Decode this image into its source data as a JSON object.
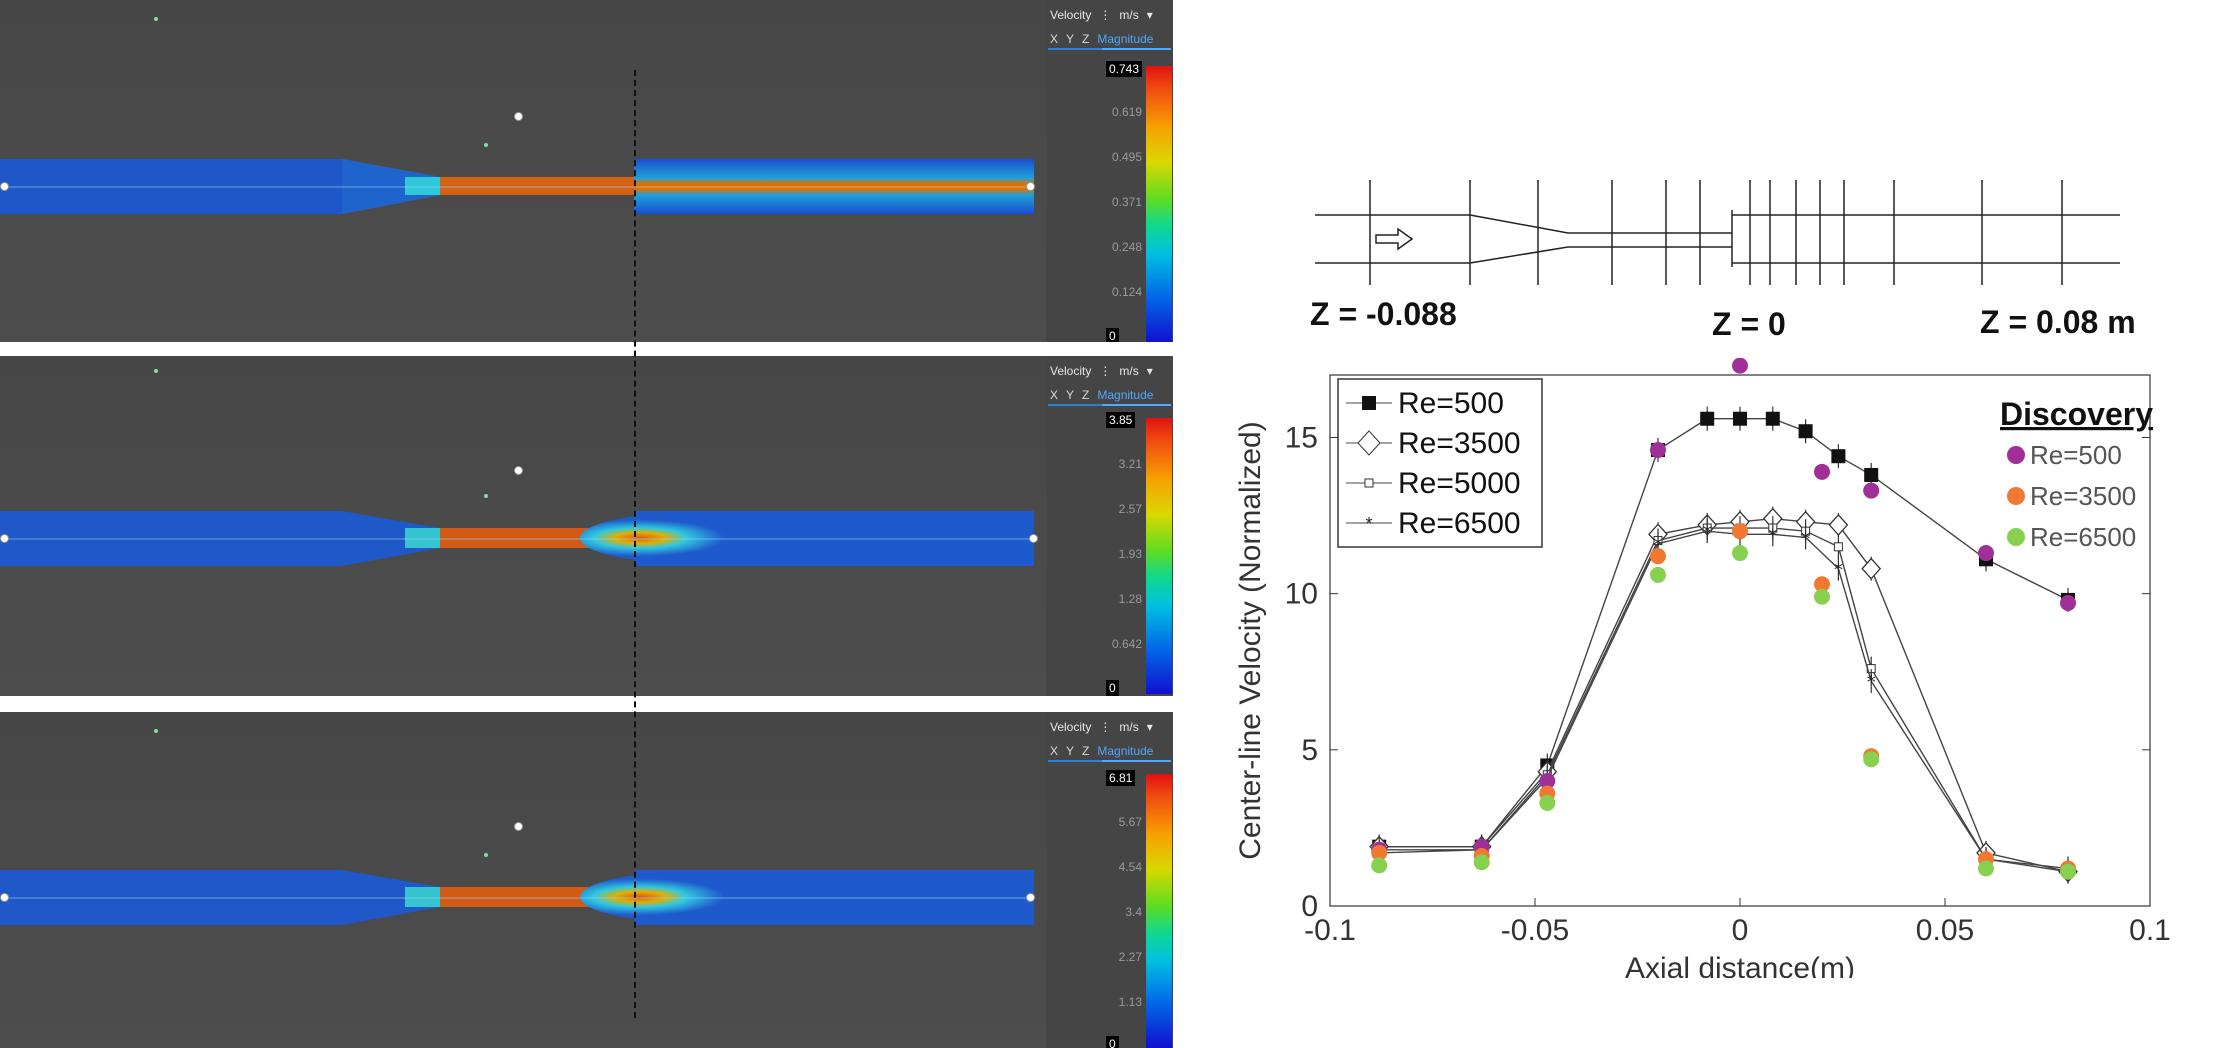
{
  "panels": [
    {
      "label": "Velocity",
      "unit": "m/s",
      "axes": [
        "X",
        "Y",
        "Z"
      ],
      "active_axis": "Magnitude",
      "ticks": [
        "0.743",
        "0.619",
        "0.495",
        "0.371",
        "0.248",
        "0.124",
        "0"
      ]
    },
    {
      "label": "Velocity",
      "unit": "m/s",
      "axes": [
        "X",
        "Y",
        "Z"
      ],
      "active_axis": "Magnitude",
      "ticks": [
        "3.85",
        "3.21",
        "2.57",
        "1.93",
        "1.28",
        "0.642",
        "0"
      ]
    },
    {
      "label": "Velocity",
      "unit": "m/s",
      "axes": [
        "X",
        "Y",
        "Z"
      ],
      "active_axis": "Magnitude",
      "ticks": [
        "6.81",
        "5.67",
        "4.54",
        "3.4",
        "2.27",
        "1.13",
        "0"
      ]
    }
  ],
  "colors": {
    "scale_max": "#e01010",
    "scale_min": "#1010d0",
    "selected_tab": "#4fa8ff"
  },
  "diagram": {
    "z_left": "Z = -0.088",
    "z_mid": "Z = 0",
    "z_right": "Z = 0.08 m"
  },
  "chart_data": {
    "type": "scatter",
    "xlabel": "Axial distance(m)",
    "ylabel": "Center-line Velocity (Normalized)",
    "xlim": [
      -0.1,
      0.1
    ],
    "ylim": [
      0,
      17
    ],
    "xticks": [
      "-0.1",
      "-0.05",
      "0",
      "0.05",
      "0.1"
    ],
    "yticks": [
      "0",
      "5",
      "10",
      "15"
    ],
    "discovery_title": "Discovery",
    "series": [
      {
        "name": "Re=500",
        "marker": "square",
        "x": [
          -0.088,
          -0.063,
          -0.047,
          -0.02,
          -0.008,
          0.0,
          0.008,
          0.016,
          0.024,
          0.032,
          0.06,
          0.08
        ],
        "y": [
          1.9,
          1.9,
          4.5,
          14.6,
          15.6,
          15.6,
          15.6,
          15.2,
          14.4,
          13.8,
          11.1,
          9.8
        ]
      },
      {
        "name": "Re=3500",
        "marker": "diamond",
        "x": [
          -0.088,
          -0.063,
          -0.047,
          -0.02,
          -0.008,
          0.0,
          0.008,
          0.016,
          0.024,
          0.032,
          0.06,
          0.08
        ],
        "y": [
          1.9,
          1.9,
          4.3,
          11.9,
          12.2,
          12.3,
          12.4,
          12.3,
          12.2,
          10.8,
          1.7,
          1.1
        ]
      },
      {
        "name": "Re=5000",
        "marker": "small-square",
        "x": [
          -0.088,
          -0.063,
          -0.047,
          -0.02,
          -0.008,
          0.0,
          0.008,
          0.016,
          0.024,
          0.032,
          0.06,
          0.08
        ],
        "y": [
          1.8,
          1.8,
          4.2,
          11.7,
          12.1,
          12.1,
          12.1,
          12.0,
          11.5,
          7.6,
          1.5,
          1.2
        ]
      },
      {
        "name": "Re=6500",
        "marker": "star",
        "x": [
          -0.088,
          -0.063,
          -0.047,
          -0.02,
          -0.008,
          0.0,
          0.008,
          0.016,
          0.024,
          0.032,
          0.06,
          0.08
        ],
        "y": [
          1.7,
          1.8,
          4.1,
          11.6,
          12.0,
          11.9,
          11.9,
          11.8,
          10.8,
          7.2,
          1.5,
          1.1
        ]
      }
    ],
    "discovery": [
      {
        "name": "Re=500",
        "color": "#a03098",
        "x": [
          -0.088,
          -0.063,
          -0.047,
          -0.02,
          0.0,
          0.02,
          0.032,
          0.06,
          0.08
        ],
        "y": [
          1.8,
          1.9,
          4.0,
          14.6,
          17.3,
          13.9,
          13.3,
          11.3,
          9.7
        ]
      },
      {
        "name": "Re=3500",
        "color": "#f07830",
        "x": [
          -0.088,
          -0.063,
          -0.047,
          -0.02,
          0.0,
          0.02,
          0.032,
          0.06,
          0.08
        ],
        "y": [
          1.7,
          1.6,
          3.6,
          11.2,
          12.0,
          10.3,
          4.8,
          1.5,
          1.2
        ]
      },
      {
        "name": "Re=6500",
        "color": "#88d050",
        "x": [
          -0.088,
          -0.063,
          -0.047,
          -0.02,
          0.0,
          0.02,
          0.032,
          0.06,
          0.08
        ],
        "y": [
          1.3,
          1.4,
          3.3,
          10.6,
          11.3,
          9.9,
          4.7,
          1.2,
          1.1
        ]
      }
    ]
  }
}
